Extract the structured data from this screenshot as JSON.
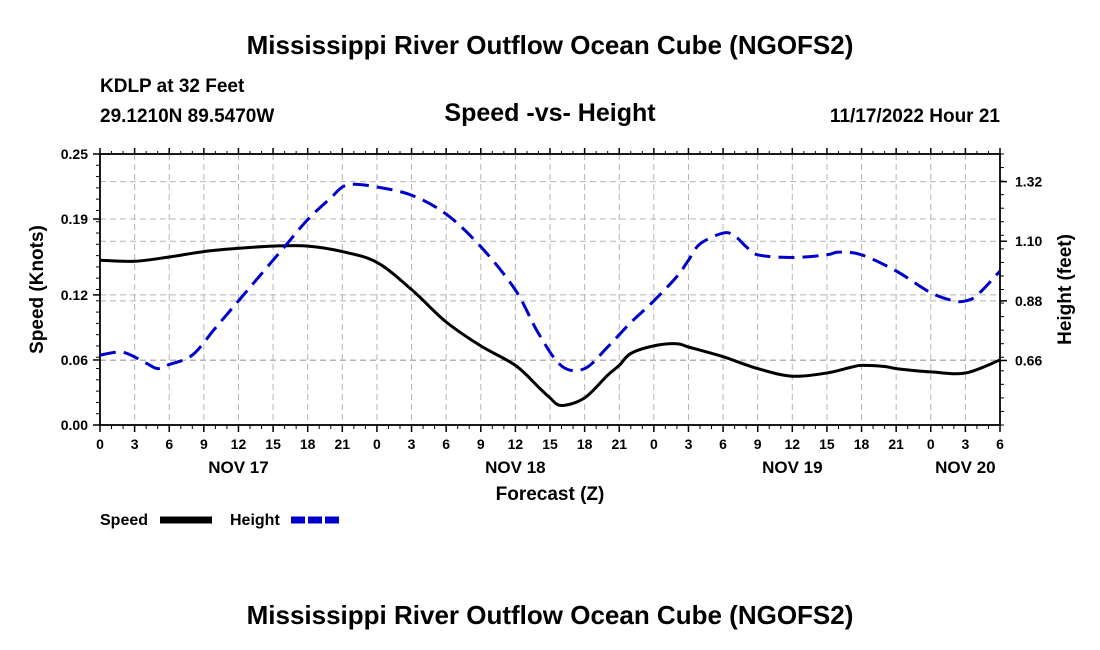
{
  "page": {
    "title": "Mississippi River Outflow Ocean Cube (NGOFS2)",
    "station": "KDLP at 32 Feet",
    "coords": "29.1210N  89.5470W",
    "subtitle": "Speed -vs- Height",
    "datetime": "11/17/2022 Hour 21",
    "footer_title": "Mississippi River Outflow Ocean Cube (NGOFS2)"
  },
  "chart_data": {
    "type": "line",
    "title": "Speed -vs- Height",
    "xlabel": "Forecast (Z)",
    "ylabel": "Speed (Knots)",
    "y2label": "Height (feet)",
    "x_unit": "hours since NOV 17 00Z",
    "xlim": [
      0,
      78
    ],
    "ylim": [
      0,
      0.25
    ],
    "y2lim": [
      0.4219,
      1.4219
    ],
    "x_ticks": [
      0,
      3,
      6,
      9,
      12,
      15,
      18,
      21,
      24,
      27,
      30,
      33,
      36,
      39,
      42,
      45,
      48,
      51,
      54,
      57,
      60,
      63,
      66,
      69,
      72,
      75,
      78
    ],
    "x_tick_labels": [
      "0",
      "3",
      "6",
      "9",
      "12",
      "15",
      "18",
      "21",
      "0",
      "3",
      "6",
      "9",
      "12",
      "15",
      "18",
      "21",
      "0",
      "3",
      "6",
      "9",
      "12",
      "15",
      "18",
      "21",
      "0",
      "3",
      "6"
    ],
    "date_labels": [
      {
        "x": 12,
        "label": "NOV 17"
      },
      {
        "x": 36,
        "label": "NOV 18"
      },
      {
        "x": 60,
        "label": "NOV 19"
      },
      {
        "x": 75,
        "label": "NOV 20"
      }
    ],
    "y_ticks": [
      0.0,
      0.06,
      0.12,
      0.19,
      0.25
    ],
    "y_tick_labels": [
      "0.00",
      "0.06",
      "0.12",
      "0.19",
      "0.25"
    ],
    "y2_ticks": [
      0.66,
      0.88,
      1.1,
      1.32
    ],
    "y2_tick_labels": [
      "0.66",
      "0.88",
      "1.10",
      "1.32"
    ],
    "grid": true,
    "legend_position": "bottom-left",
    "series": [
      {
        "name": "Speed",
        "axis": "left",
        "color": "#000000",
        "dash": "solid",
        "x": [
          0,
          3,
          6,
          9,
          12,
          15,
          18,
          21,
          24,
          27,
          30,
          33,
          36,
          38,
          39,
          40,
          42,
          44,
          45,
          46,
          48,
          50,
          51,
          54,
          57,
          60,
          63,
          65,
          66,
          68,
          69,
          72,
          75,
          78
        ],
        "y": [
          0.152,
          0.151,
          0.155,
          0.16,
          0.163,
          0.165,
          0.165,
          0.16,
          0.15,
          0.125,
          0.095,
          0.073,
          0.055,
          0.035,
          0.025,
          0.018,
          0.025,
          0.046,
          0.055,
          0.066,
          0.073,
          0.075,
          0.072,
          0.063,
          0.052,
          0.045,
          0.048,
          0.053,
          0.055,
          0.054,
          0.052,
          0.049,
          0.048,
          0.06
        ]
      },
      {
        "name": "Height",
        "axis": "right",
        "color": "#0000cc",
        "dash": "dashed",
        "x": [
          0,
          2,
          4,
          5,
          6,
          8,
          10,
          12,
          14,
          16,
          18,
          20,
          21,
          22,
          24,
          27,
          30,
          33,
          36,
          38,
          40,
          42,
          44,
          46,
          48,
          50,
          51,
          52,
          54,
          55,
          56,
          57,
          60,
          63,
          64,
          66,
          69,
          72,
          74,
          75,
          76,
          78
        ],
        "y": [
          0.68,
          0.69,
          0.65,
          0.63,
          0.645,
          0.68,
          0.78,
          0.88,
          0.98,
          1.08,
          1.18,
          1.26,
          1.3,
          1.31,
          1.3,
          1.27,
          1.2,
          1.08,
          0.92,
          0.76,
          0.64,
          0.63,
          0.71,
          0.8,
          0.88,
          0.97,
          1.03,
          1.09,
          1.13,
          1.12,
          1.08,
          1.05,
          1.04,
          1.05,
          1.06,
          1.05,
          0.99,
          0.91,
          0.88,
          0.88,
          0.9,
          0.99
        ]
      }
    ]
  },
  "legend": {
    "speed_label": "Speed",
    "height_label": "Height"
  }
}
